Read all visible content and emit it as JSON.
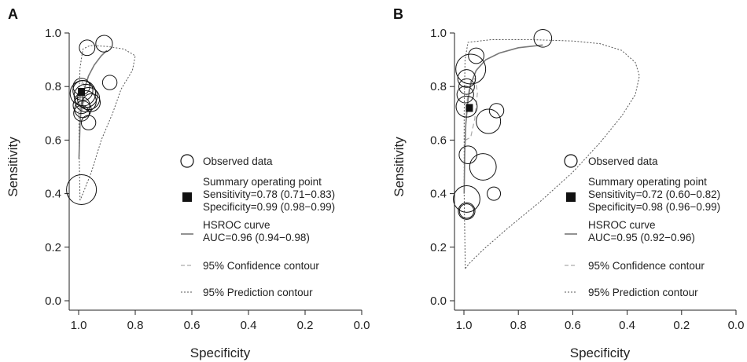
{
  "chart_data": [
    {
      "panel": "A",
      "type": "scatter",
      "xlabel": "Specificity",
      "ylabel": "Sensitivity",
      "xlim": [
        1.0,
        0.0
      ],
      "ylim": [
        0.0,
        1.0
      ],
      "x_ticks": [
        "1.0",
        "0.8",
        "0.6",
        "0.4",
        "0.2",
        "0.0"
      ],
      "y_ticks": [
        "0.0",
        "0.2",
        "0.4",
        "0.6",
        "0.8",
        "1.0"
      ],
      "observed": [
        {
          "spec": 0.99,
          "sens": 0.415,
          "size": 1.0
        },
        {
          "spec": 0.97,
          "sens": 0.945,
          "size": 0.35
        },
        {
          "spec": 0.91,
          "sens": 0.96,
          "size": 0.4
        },
        {
          "spec": 0.89,
          "sens": 0.815,
          "size": 0.3
        },
        {
          "spec": 0.99,
          "sens": 0.8,
          "size": 0.4
        },
        {
          "spec": 0.985,
          "sens": 0.785,
          "size": 0.55
        },
        {
          "spec": 0.985,
          "sens": 0.775,
          "size": 0.8
        },
        {
          "spec": 0.975,
          "sens": 0.765,
          "size": 0.7
        },
        {
          "spec": 0.965,
          "sens": 0.755,
          "size": 0.65
        },
        {
          "spec": 0.975,
          "sens": 0.745,
          "size": 0.6
        },
        {
          "spec": 0.955,
          "sens": 0.74,
          "size": 0.45
        },
        {
          "spec": 0.99,
          "sens": 0.73,
          "size": 0.4
        },
        {
          "spec": 0.985,
          "sens": 0.715,
          "size": 0.4
        },
        {
          "spec": 0.99,
          "sens": 0.7,
          "size": 0.35
        },
        {
          "spec": 0.965,
          "sens": 0.665,
          "size": 0.3
        }
      ],
      "summary_point": {
        "spec": 0.99,
        "sens": 0.78
      },
      "hsroc_curve": [
        [
          0.999,
          0.53
        ],
        [
          0.995,
          0.66
        ],
        [
          0.99,
          0.735
        ],
        [
          0.98,
          0.79
        ],
        [
          0.965,
          0.84
        ],
        [
          0.945,
          0.88
        ],
        [
          0.92,
          0.915
        ],
        [
          0.9,
          0.935
        ]
      ],
      "confidence_contour": [
        [
          0.995,
          0.72
        ],
        [
          0.993,
          0.79
        ],
        [
          0.985,
          0.825
        ],
        [
          0.98,
          0.8
        ],
        [
          0.982,
          0.735
        ],
        [
          0.99,
          0.7
        ],
        [
          0.995,
          0.72
        ]
      ],
      "prediction_contour": [
        [
          0.995,
          0.375
        ],
        [
          0.998,
          0.55
        ],
        [
          0.999,
          0.75
        ],
        [
          0.995,
          0.87
        ],
        [
          0.985,
          0.94
        ],
        [
          0.96,
          0.953
        ],
        [
          0.9,
          0.95
        ],
        [
          0.84,
          0.94
        ],
        [
          0.8,
          0.915
        ],
        [
          0.81,
          0.86
        ],
        [
          0.85,
          0.79
        ],
        [
          0.88,
          0.7
        ],
        [
          0.92,
          0.6
        ],
        [
          0.955,
          0.48
        ],
        [
          0.985,
          0.4
        ],
        [
          0.995,
          0.375
        ]
      ],
      "legend": {
        "observed": "Observed data",
        "summary_title": "Summary operating point",
        "summary_sens": "Sensitivity=0.78 (0.71−0.83)",
        "summary_spec": "Specificity=0.99 (0.98−0.99)",
        "hsroc_title": "HSROC curve",
        "hsroc_auc": "AUC=0.96 (0.94−0.98)",
        "confidence": "95% Confidence contour",
        "prediction": "95% Prediction contour"
      }
    },
    {
      "panel": "B",
      "type": "scatter",
      "xlabel": "Specificity",
      "ylabel": "Sensitivity",
      "xlim": [
        1.0,
        0.0
      ],
      "ylim": [
        0.0,
        1.0
      ],
      "x_ticks": [
        "1.0",
        "0.8",
        "0.6",
        "0.4",
        "0.2",
        "0.0"
      ],
      "y_ticks": [
        "0.0",
        "0.2",
        "0.4",
        "0.6",
        "0.8",
        "1.0"
      ],
      "observed": [
        {
          "spec": 0.99,
          "sens": 0.38,
          "size": 0.85
        },
        {
          "spec": 0.99,
          "sens": 0.335,
          "size": 0.4
        },
        {
          "spec": 0.99,
          "sens": 0.335,
          "size": 0.3
        },
        {
          "spec": 0.985,
          "sens": 0.545,
          "size": 0.45
        },
        {
          "spec": 0.93,
          "sens": 0.5,
          "size": 0.85
        },
        {
          "spec": 0.89,
          "sens": 0.4,
          "size": 0.25
        },
        {
          "spec": 0.91,
          "sens": 0.67,
          "size": 0.75
        },
        {
          "spec": 0.88,
          "sens": 0.71,
          "size": 0.3
        },
        {
          "spec": 0.99,
          "sens": 0.725,
          "size": 0.6
        },
        {
          "spec": 0.995,
          "sens": 0.77,
          "size": 0.4
        },
        {
          "spec": 0.99,
          "sens": 0.8,
          "size": 0.35
        },
        {
          "spec": 0.99,
          "sens": 0.83,
          "size": 0.45
        },
        {
          "spec": 0.975,
          "sens": 0.865,
          "size": 1.0
        },
        {
          "spec": 0.955,
          "sens": 0.915,
          "size": 0.35
        },
        {
          "spec": 0.71,
          "sens": 0.98,
          "size": 0.45
        }
      ],
      "summary_point": {
        "spec": 0.98,
        "sens": 0.72
      },
      "hsroc_curve": [
        [
          0.999,
          0.4
        ],
        [
          0.997,
          0.55
        ],
        [
          0.993,
          0.66
        ],
        [
          0.985,
          0.75
        ],
        [
          0.975,
          0.81
        ],
        [
          0.955,
          0.86
        ],
        [
          0.92,
          0.9
        ],
        [
          0.87,
          0.925
        ],
        [
          0.8,
          0.945
        ],
        [
          0.71,
          0.955
        ]
      ],
      "confidence_contour": [
        [
          0.995,
          0.6
        ],
        [
          0.99,
          0.74
        ],
        [
          0.975,
          0.82
        ],
        [
          0.96,
          0.83
        ],
        [
          0.95,
          0.78
        ],
        [
          0.96,
          0.68
        ],
        [
          0.975,
          0.61
        ],
        [
          0.995,
          0.6
        ]
      ],
      "prediction_contour": [
        [
          0.995,
          0.12
        ],
        [
          0.999,
          0.4
        ],
        [
          0.999,
          0.7
        ],
        [
          0.996,
          0.9
        ],
        [
          0.985,
          0.965
        ],
        [
          0.9,
          0.975
        ],
        [
          0.75,
          0.975
        ],
        [
          0.6,
          0.97
        ],
        [
          0.5,
          0.96
        ],
        [
          0.42,
          0.935
        ],
        [
          0.37,
          0.89
        ],
        [
          0.355,
          0.84
        ],
        [
          0.37,
          0.77
        ],
        [
          0.42,
          0.69
        ],
        [
          0.5,
          0.59
        ],
        [
          0.6,
          0.48
        ],
        [
          0.72,
          0.37
        ],
        [
          0.84,
          0.27
        ],
        [
          0.93,
          0.19
        ],
        [
          0.98,
          0.14
        ],
        [
          0.995,
          0.12
        ]
      ],
      "legend": {
        "observed": "Observed data",
        "summary_title": "Summary operating point",
        "summary_sens": "Sensitivity=0.72 (0.60−0.82)",
        "summary_spec": "Specificity=0.98 (0.96−0.99)",
        "hsroc_title": "HSROC curve",
        "hsroc_auc": "AUC=0.95 (0.92−0.96)",
        "confidence": "95% Confidence contour",
        "prediction": "95% Prediction contour"
      }
    }
  ]
}
